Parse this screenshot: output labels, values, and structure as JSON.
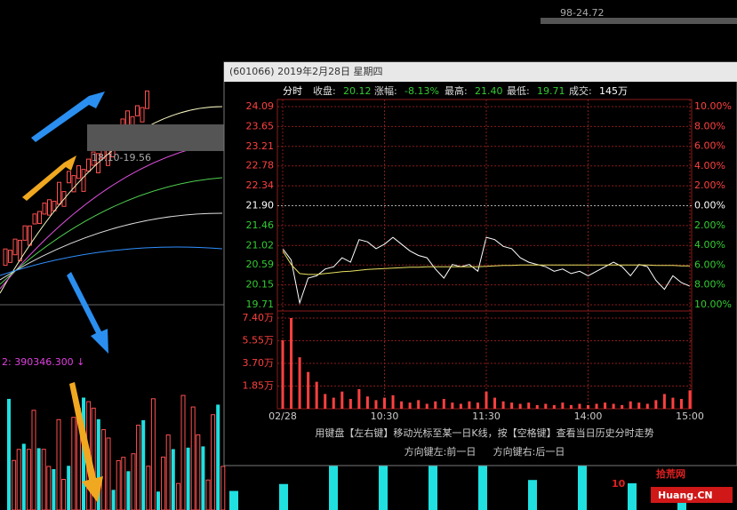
{
  "background_labels": [
    "98-24.72",
    "18.10-19.56",
    "2: 390346.300 ↓"
  ],
  "window": {
    "title": "(601066) 2019年2月28日 星期四"
  },
  "info": {
    "mode": "分时",
    "close_label": "收盘:",
    "close": "20.12",
    "change_label": "涨幅:",
    "change": "-8.13%",
    "high_label": "最高:",
    "high": "21.40",
    "low_label": "最低:",
    "low": "19.71",
    "volume_label": "成交:",
    "volume": "145万"
  },
  "footer": {
    "hint": "用键盘【左右键】移动光标至某一日K线，按【空格键】查看当日历史分时走势",
    "left": "方向键左:前一日",
    "right": "方向键右:后一日"
  },
  "watermark": {
    "number": "10",
    "name": "拾荒网",
    "site": "Huang.CN"
  },
  "chart_data": [
    {
      "type": "line",
      "grid": true,
      "x": [
        0,
        5,
        10,
        15,
        20,
        25,
        30,
        35,
        40,
        45,
        50,
        55,
        60,
        65,
        70,
        75,
        80,
        85,
        90,
        95,
        100,
        105,
        110,
        115,
        120,
        125,
        130,
        135,
        140,
        145,
        150,
        155,
        160,
        165,
        170,
        175,
        180,
        185,
        190,
        195,
        200,
        205,
        210,
        215,
        220,
        225,
        230,
        235,
        240
      ],
      "xlim": [
        0,
        240
      ],
      "ylim": [
        19.71,
        24.09
      ],
      "yticks": [
        24.09,
        23.65,
        23.21,
        22.78,
        22.34,
        {
          "value": 21.9,
          "label": "21.90"
        },
        21.46,
        21.02,
        20.59,
        20.15,
        19.71
      ],
      "y2lim": [
        -10,
        10
      ],
      "y2ticks": [
        {
          "value": 10,
          "label": "10.00%"
        },
        {
          "value": 8,
          "label": "8.00%"
        },
        {
          "value": 6,
          "label": "6.00%"
        },
        {
          "value": 4,
          "label": "4.00%"
        },
        {
          "value": 2,
          "label": "2.00%"
        },
        {
          "value": 0,
          "label": "0.00%"
        },
        {
          "value": -2,
          "label": "2.00%"
        },
        {
          "value": -4,
          "label": "4.00%"
        },
        {
          "value": -6,
          "label": "6.00%"
        },
        {
          "value": -8,
          "label": "8.00%"
        },
        {
          "value": -10,
          "label": "10.00%"
        }
      ],
      "series": [
        {
          "color": "#ffffff",
          "values": [
            20.95,
            20.7,
            19.75,
            20.3,
            20.35,
            20.5,
            20.55,
            20.75,
            20.65,
            21.15,
            21.1,
            20.95,
            21.05,
            21.2,
            21.05,
            20.9,
            20.8,
            20.75,
            20.5,
            20.3,
            20.6,
            20.55,
            20.6,
            20.45,
            21.2,
            21.15,
            21.0,
            20.95,
            20.75,
            20.65,
            20.6,
            20.55,
            20.45,
            20.5,
            20.4,
            20.45,
            20.35,
            20.45,
            20.55,
            20.65,
            20.55,
            20.35,
            20.6,
            20.55,
            20.25,
            20.05,
            20.35,
            20.2,
            20.12
          ]
        },
        {
          "color": "#e8e060",
          "values": [
            20.9,
            20.6,
            20.4,
            20.38,
            20.38,
            20.4,
            20.42,
            20.44,
            20.45,
            20.47,
            20.49,
            20.5,
            20.51,
            20.52,
            20.53,
            20.54,
            20.54,
            20.55,
            20.55,
            20.55,
            20.55,
            20.55,
            20.55,
            20.55,
            20.56,
            20.57,
            20.58,
            20.58,
            20.59,
            20.59,
            20.59,
            20.59,
            20.59,
            20.59,
            20.59,
            20.59,
            20.59,
            20.59,
            20.59,
            20.59,
            20.59,
            20.59,
            20.59,
            20.59,
            20.58,
            20.58,
            20.58,
            20.57,
            20.57
          ]
        }
      ]
    },
    {
      "type": "bar",
      "grid": true,
      "x": [
        0,
        5,
        10,
        15,
        20,
        25,
        30,
        35,
        40,
        45,
        50,
        55,
        60,
        65,
        70,
        75,
        80,
        85,
        90,
        95,
        100,
        105,
        110,
        115,
        120,
        125,
        130,
        135,
        140,
        145,
        150,
        155,
        160,
        165,
        170,
        175,
        180,
        185,
        190,
        195,
        200,
        205,
        210,
        215,
        220,
        225,
        230,
        235,
        240
      ],
      "xlim": [
        0,
        240
      ],
      "xticks": [
        {
          "value": 0,
          "label": "02/28"
        },
        {
          "value": 60,
          "label": "10:30"
        },
        {
          "value": 120,
          "label": "11:30"
        },
        {
          "value": 180,
          "label": "14:00"
        },
        {
          "value": 240,
          "label": "15:00"
        }
      ],
      "ylim": [
        0,
        74000
      ],
      "yticks": [
        {
          "value": 74000,
          "label": "7.40万"
        },
        {
          "value": 55500,
          "label": "5.55万"
        },
        {
          "value": 37000,
          "label": "3.70万"
        },
        {
          "value": 18500,
          "label": "1.85万"
        }
      ],
      "color": "#ff4040",
      "values": [
        56000,
        74000,
        42000,
        30000,
        22000,
        12000,
        9000,
        14000,
        8000,
        16000,
        10000,
        7000,
        9000,
        11000,
        6000,
        5000,
        7000,
        4000,
        6000,
        8000,
        5000,
        4000,
        6000,
        5000,
        14000,
        9000,
        6000,
        5000,
        4000,
        5000,
        3000,
        4000,
        3000,
        5000,
        3000,
        4000,
        3000,
        4000,
        5000,
        4000,
        3000,
        6000,
        5000,
        4000,
        7000,
        12000,
        9000,
        8000,
        15000
      ]
    }
  ]
}
